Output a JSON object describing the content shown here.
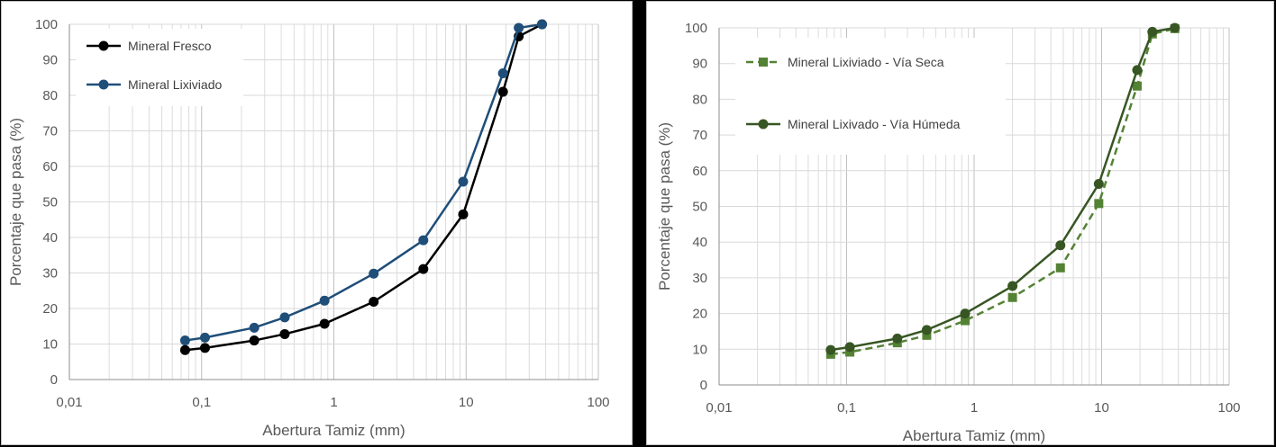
{
  "chart_data": [
    {
      "type": "line",
      "x_scale": "log",
      "xlabel": "Abertura Tamiz (mm)",
      "ylabel": "Porcentaje que pasa (%)",
      "xlim": [
        0.01,
        100
      ],
      "ylim": [
        0,
        100
      ],
      "x_ticks": [
        "0,01",
        "0,1",
        "1",
        "10",
        "100"
      ],
      "y_ticks": [
        "0",
        "10",
        "20",
        "30",
        "40",
        "50",
        "60",
        "70",
        "80",
        "90",
        "100"
      ],
      "grid": true,
      "legend_position": "top-left",
      "series": [
        {
          "name": "Mineral Fresco",
          "color": "#000000",
          "dashed": false,
          "points": [
            [
              0.075,
              8.3
            ],
            [
              0.106,
              8.9
            ],
            [
              0.25,
              11.0
            ],
            [
              0.425,
              12.8
            ],
            [
              0.85,
              15.7
            ],
            [
              2,
              21.9
            ],
            [
              4.75,
              31.1
            ],
            [
              9.5,
              46.5
            ],
            [
              19,
              81.0
            ],
            [
              25,
              96.6
            ],
            [
              37.5,
              100
            ]
          ]
        },
        {
          "name": "Mineral Lixiviado",
          "color": "#1f4e79",
          "dashed": false,
          "points": [
            [
              0.075,
              11.0
            ],
            [
              0.106,
              11.8
            ],
            [
              0.25,
              14.6
            ],
            [
              0.425,
              17.5
            ],
            [
              0.85,
              22.2
            ],
            [
              2,
              29.8
            ],
            [
              4.75,
              39.2
            ],
            [
              9.5,
              55.7
            ],
            [
              19,
              86.2
            ],
            [
              25,
              99.0
            ],
            [
              37.5,
              100
            ]
          ]
        }
      ]
    },
    {
      "type": "line",
      "x_scale": "log",
      "xlabel": "Abertura Tamiz (mm)",
      "ylabel": "Porcentaje que pasa (%)",
      "xlim": [
        0.01,
        100
      ],
      "ylim": [
        0,
        100
      ],
      "x_ticks": [
        "0,01",
        "0,1",
        "1",
        "10",
        "100"
      ],
      "y_ticks": [
        "0",
        "10",
        "20",
        "30",
        "40",
        "50",
        "60",
        "70",
        "80",
        "90",
        "100"
      ],
      "grid": true,
      "legend_position": "top-left",
      "series": [
        {
          "name": "Mineral Lixiviado - Vía Seca",
          "color": "#548235",
          "dashed": true,
          "points": [
            [
              0.075,
              8.6
            ],
            [
              0.106,
              9.2
            ],
            [
              0.25,
              11.8
            ],
            [
              0.425,
              13.9
            ],
            [
              0.85,
              18.0
            ],
            [
              2,
              24.5
            ],
            [
              4.75,
              32.8
            ],
            [
              9.5,
              50.8
            ],
            [
              19,
              83.7
            ],
            [
              25,
              98.3
            ],
            [
              37.5,
              99.8
            ]
          ]
        },
        {
          "name": "Mineral Lixivado - Vía Húmeda",
          "color": "#375623",
          "dashed": false,
          "points": [
            [
              0.075,
              9.8
            ],
            [
              0.106,
              10.6
            ],
            [
              0.25,
              13.0
            ],
            [
              0.425,
              15.4
            ],
            [
              0.85,
              20.0
            ],
            [
              2,
              27.7
            ],
            [
              4.75,
              39.1
            ],
            [
              9.5,
              56.3
            ],
            [
              19,
              88.2
            ],
            [
              25,
              98.9
            ],
            [
              37.5,
              100
            ]
          ]
        }
      ]
    }
  ]
}
